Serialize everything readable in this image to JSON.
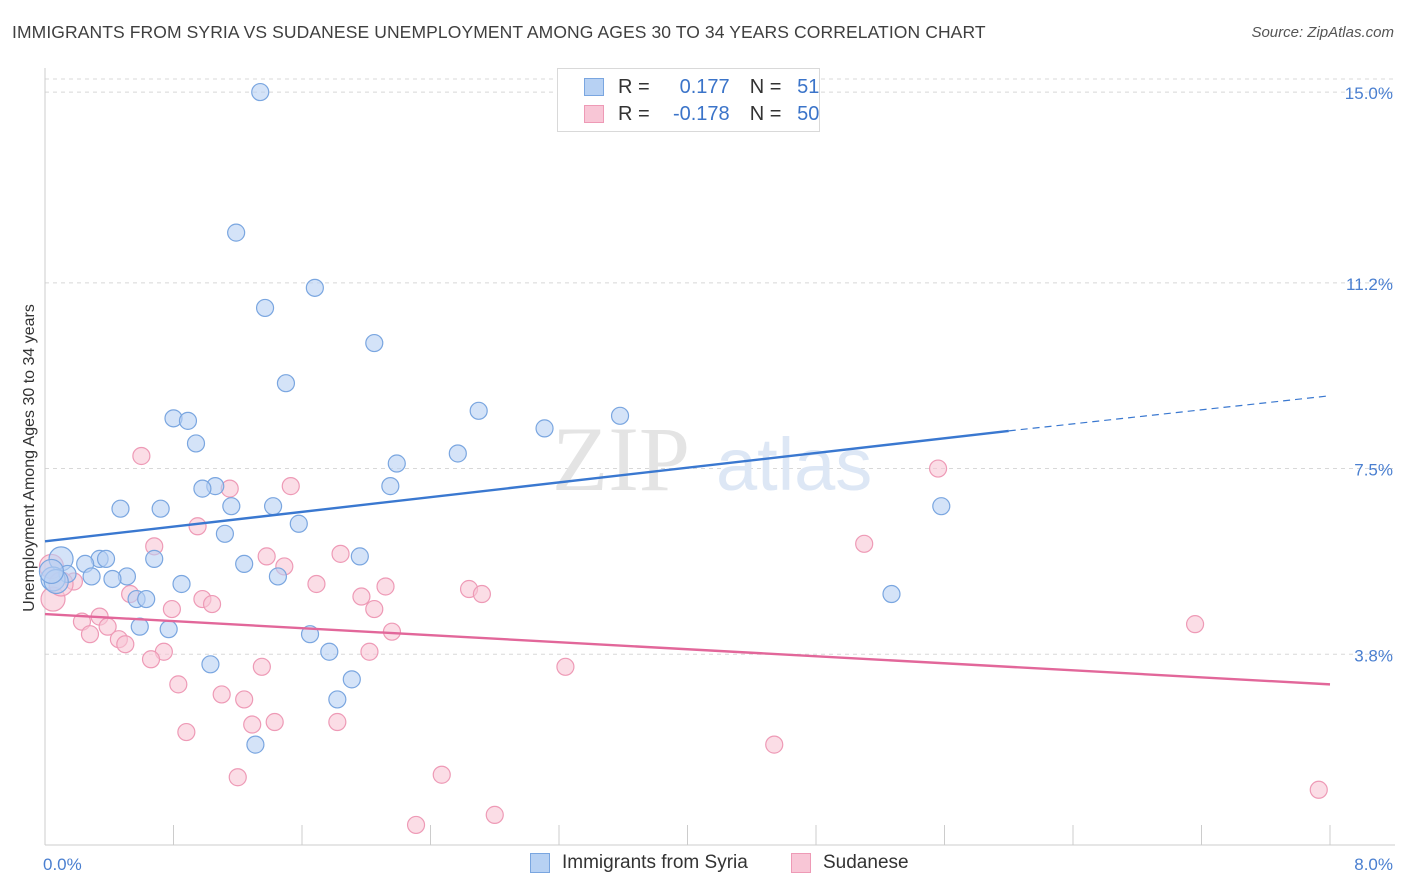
{
  "title": "IMMIGRANTS FROM SYRIA VS SUDANESE UNEMPLOYMENT AMONG AGES 30 TO 34 YEARS CORRELATION CHART",
  "source": "Source: ZipAtlas.com",
  "watermark": {
    "part1": "ZIP",
    "part2": "atlas"
  },
  "legend": {
    "series1": {
      "r_label": "R =",
      "r_value": "0.177",
      "n_label": "N =",
      "n_value": "51"
    },
    "series2": {
      "r_label": "R =",
      "r_value": "-0.178",
      "n_label": "N =",
      "n_value": "50"
    }
  },
  "colors": {
    "syria_fill": "#b7d1f3",
    "syria_stroke": "#7aa6e0",
    "syria_line": "#3a78d0",
    "sudan_fill": "#f8c6d6",
    "sudan_stroke": "#ee9ab6",
    "sudan_line": "#e2679a",
    "grid": "#d8d8d8",
    "axis": "#cccccc"
  },
  "chart_data": {
    "type": "scatter",
    "title": "IMMIGRANTS FROM SYRIA VS SUDANESE UNEMPLOYMENT AMONG AGES 30 TO 34 YEARS CORRELATION CHART",
    "xlabel": "",
    "ylabel": "Unemployment Among Ages 30 to 34 years",
    "xlim": [
      0,
      8.0
    ],
    "ylim": [
      0,
      15.4
    ],
    "x_tick_labels": [
      "0.0%",
      "8.0%"
    ],
    "y_ticks": [
      3.8,
      7.5,
      11.2,
      15.0
    ],
    "y_tick_labels": [
      "3.8%",
      "7.5%",
      "11.2%",
      "15.0%"
    ],
    "grid": true,
    "series": [
      {
        "name": "Immigrants from Syria",
        "r": 0.177,
        "n": 51,
        "trend": {
          "x0": 0.0,
          "y0": 6.05,
          "x1": 6.0,
          "y1": 8.25,
          "dash_to_x": 8.0,
          "dash_to_y": 8.95
        },
        "points": [
          [
            1.34,
            15.0
          ],
          [
            1.19,
            12.2
          ],
          [
            1.37,
            10.7
          ],
          [
            1.68,
            11.1
          ],
          [
            2.05,
            10.0
          ],
          [
            1.5,
            9.2
          ],
          [
            0.8,
            8.5
          ],
          [
            0.89,
            8.45
          ],
          [
            0.94,
            8.0
          ],
          [
            2.7,
            8.65
          ],
          [
            3.11,
            8.3
          ],
          [
            3.58,
            8.55
          ],
          [
            2.57,
            7.8
          ],
          [
            2.19,
            7.6
          ],
          [
            2.15,
            7.15
          ],
          [
            1.06,
            7.15
          ],
          [
            0.98,
            7.1
          ],
          [
            0.47,
            6.7
          ],
          [
            0.72,
            6.7
          ],
          [
            1.16,
            6.75
          ],
          [
            1.42,
            6.75
          ],
          [
            1.58,
            6.4
          ],
          [
            5.58,
            6.75
          ],
          [
            1.12,
            6.2
          ],
          [
            0.1,
            5.7
          ],
          [
            0.34,
            5.7
          ],
          [
            0.38,
            5.7
          ],
          [
            0.68,
            5.7
          ],
          [
            0.25,
            5.6
          ],
          [
            0.14,
            5.4
          ],
          [
            0.29,
            5.35
          ],
          [
            0.51,
            5.35
          ],
          [
            0.42,
            5.3
          ],
          [
            1.24,
            5.6
          ],
          [
            1.45,
            5.35
          ],
          [
            1.96,
            5.75
          ],
          [
            0.85,
            5.2
          ],
          [
            0.05,
            5.3
          ],
          [
            0.57,
            4.9
          ],
          [
            0.63,
            4.9
          ],
          [
            5.27,
            5.0
          ],
          [
            0.59,
            4.35
          ],
          [
            0.77,
            4.3
          ],
          [
            1.65,
            4.2
          ],
          [
            1.03,
            3.6
          ],
          [
            1.77,
            3.85
          ],
          [
            1.91,
            3.3
          ],
          [
            1.82,
            2.9
          ],
          [
            1.31,
            2.0
          ],
          [
            0.07,
            5.25
          ],
          [
            0.04,
            5.45
          ]
        ]
      },
      {
        "name": "Sudanese",
        "r": -0.178,
        "n": 50,
        "trend": {
          "x0": 0.0,
          "y0": 4.6,
          "x1": 8.0,
          "y1": 3.2
        },
        "points": [
          [
            0.6,
            7.75
          ],
          [
            1.15,
            7.1
          ],
          [
            1.53,
            7.15
          ],
          [
            5.56,
            7.5
          ],
          [
            0.95,
            6.35
          ],
          [
            0.68,
            5.95
          ],
          [
            5.1,
            6.0
          ],
          [
            1.38,
            5.75
          ],
          [
            1.49,
            5.55
          ],
          [
            1.84,
            5.8
          ],
          [
            0.18,
            5.25
          ],
          [
            1.69,
            5.2
          ],
          [
            2.12,
            5.15
          ],
          [
            2.64,
            5.1
          ],
          [
            2.72,
            5.0
          ],
          [
            0.53,
            5.0
          ],
          [
            1.97,
            4.95
          ],
          [
            0.98,
            4.9
          ],
          [
            1.04,
            4.8
          ],
          [
            0.79,
            4.7
          ],
          [
            2.05,
            4.7
          ],
          [
            0.34,
            4.55
          ],
          [
            0.23,
            4.45
          ],
          [
            0.39,
            4.35
          ],
          [
            7.16,
            4.4
          ],
          [
            2.16,
            4.25
          ],
          [
            0.28,
            4.2
          ],
          [
            0.46,
            4.1
          ],
          [
            0.5,
            4.0
          ],
          [
            0.74,
            3.85
          ],
          [
            2.02,
            3.85
          ],
          [
            0.66,
            3.7
          ],
          [
            3.24,
            3.55
          ],
          [
            1.35,
            3.55
          ],
          [
            0.83,
            3.2
          ],
          [
            1.1,
            3.0
          ],
          [
            1.24,
            2.9
          ],
          [
            1.29,
            2.4
          ],
          [
            1.43,
            2.45
          ],
          [
            1.82,
            2.45
          ],
          [
            0.88,
            2.25
          ],
          [
            4.54,
            2.0
          ],
          [
            1.2,
            1.35
          ],
          [
            2.47,
            1.4
          ],
          [
            2.31,
            0.4
          ],
          [
            2.8,
            0.6
          ],
          [
            7.93,
            1.1
          ],
          [
            0.05,
            4.9
          ],
          [
            0.04,
            5.55
          ],
          [
            0.1,
            5.2
          ]
        ]
      }
    ]
  }
}
